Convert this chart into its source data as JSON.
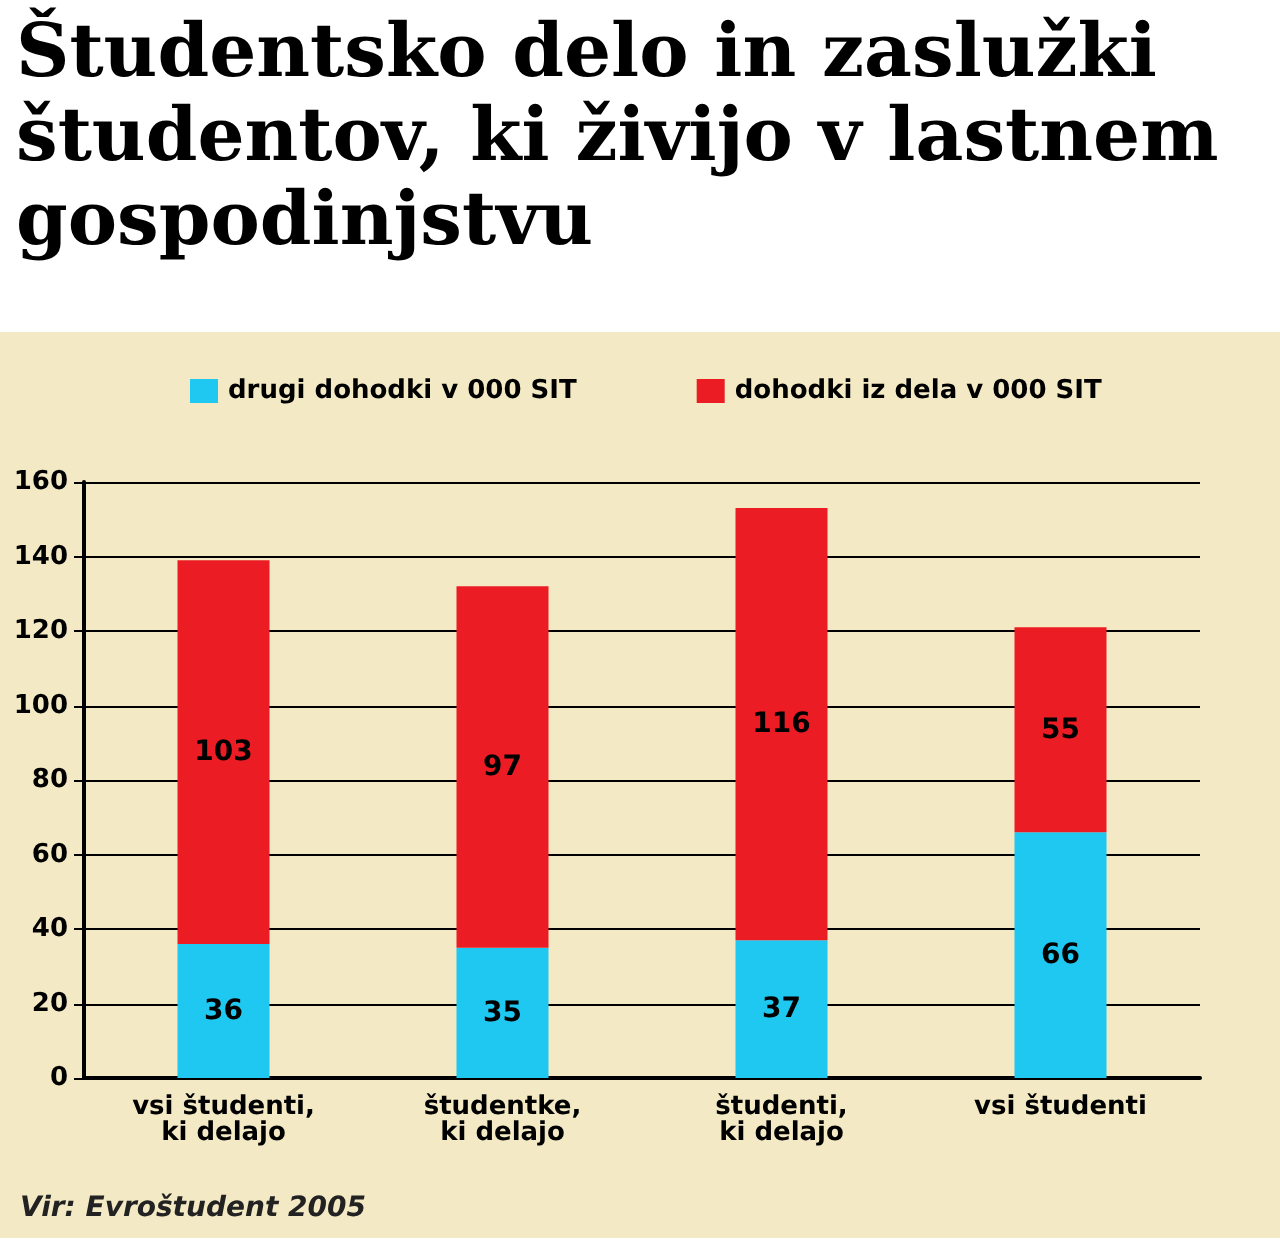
{
  "chart_data": {
    "type": "bar",
    "title": "Študentsko delo in zaslužki študentov, ki živijo v lastnem gospodinjstvu",
    "categories": [
      "vsi študenti, ki delajo",
      "študentke, ki delajo",
      "študenti, ki delajo",
      "vsi študenti"
    ],
    "series": [
      {
        "name": "drugi dohodki v 000 SIT",
        "color": "#1ec8f0",
        "values": [
          36,
          35,
          37,
          66
        ]
      },
      {
        "name": "dohodki iz dela v 000 SIT",
        "color": "#ec1c24",
        "values": [
          103,
          97,
          116,
          55
        ]
      }
    ],
    "stacked": true,
    "data_labels": true,
    "ylim": [
      0,
      160
    ],
    "yticks": [
      0,
      20,
      40,
      60,
      80,
      100,
      120,
      140,
      160
    ],
    "grid": "y",
    "legend": "top",
    "annotations": [
      "Vir: Evroštudent 2005"
    ]
  }
}
